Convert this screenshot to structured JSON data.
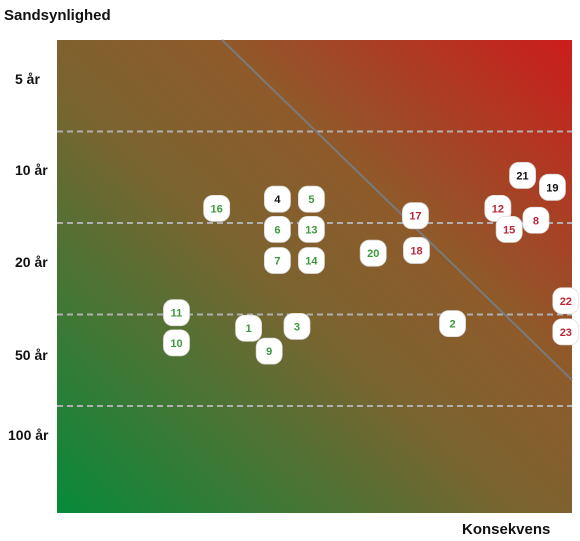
{
  "chart_data": {
    "type": "scatter",
    "title": "",
    "ylabel": "Sandsynlighed",
    "xlabel": "Konsekvens",
    "y_ticks": [
      "5 år",
      "10 år",
      "20 år",
      "50 år",
      "100 år"
    ],
    "grid": "horizontal dashed",
    "background": "gradient from green (bottom-left) to red (top-right)",
    "colors": {
      "green": "#3c9a3c",
      "black": "#111111",
      "red": "#b8283a",
      "grid": "#b0b0b0",
      "divider": "#7a7a7a"
    },
    "points": [
      {
        "label": "1",
        "x": 1.86,
        "y": 3.15,
        "color": "green"
      },
      {
        "label": "2",
        "x": 3.84,
        "y": 3.1,
        "color": "green"
      },
      {
        "label": "3",
        "x": 2.33,
        "y": 3.13,
        "color": "green"
      },
      {
        "label": "4",
        "x": 2.14,
        "y": 1.74,
        "color": "black"
      },
      {
        "label": "5",
        "x": 2.47,
        "y": 1.74,
        "color": "green"
      },
      {
        "label": "6",
        "x": 2.14,
        "y": 2.07,
        "color": "green"
      },
      {
        "label": "7",
        "x": 2.14,
        "y": 2.41,
        "color": "green"
      },
      {
        "label": "8",
        "x": 4.65,
        "y": 1.97,
        "color": "red"
      },
      {
        "label": "9",
        "x": 2.06,
        "y": 3.4,
        "color": "green"
      },
      {
        "label": "10",
        "x": 1.16,
        "y": 3.31,
        "color": "green"
      },
      {
        "label": "11",
        "x": 1.16,
        "y": 2.98,
        "color": "green"
      },
      {
        "label": "12",
        "x": 4.28,
        "y": 1.84,
        "color": "red"
      },
      {
        "label": "13",
        "x": 2.47,
        "y": 2.07,
        "color": "green"
      },
      {
        "label": "14",
        "x": 2.47,
        "y": 2.41,
        "color": "green"
      },
      {
        "label": "15",
        "x": 4.39,
        "y": 2.07,
        "color": "red"
      },
      {
        "label": "16",
        "x": 1.55,
        "y": 1.84,
        "color": "green"
      },
      {
        "label": "17",
        "x": 3.48,
        "y": 1.92,
        "color": "red"
      },
      {
        "label": "18",
        "x": 3.49,
        "y": 2.3,
        "color": "red"
      },
      {
        "label": "19",
        "x": 4.81,
        "y": 1.61,
        "color": "black"
      },
      {
        "label": "20",
        "x": 3.07,
        "y": 2.33,
        "color": "green"
      },
      {
        "label": "21",
        "x": 4.52,
        "y": 1.48,
        "color": "black"
      },
      {
        "label": "22",
        "x": 4.94,
        "y": 2.85,
        "color": "red"
      },
      {
        "label": "23",
        "x": 4.94,
        "y": 3.19,
        "color": "red"
      }
    ]
  }
}
